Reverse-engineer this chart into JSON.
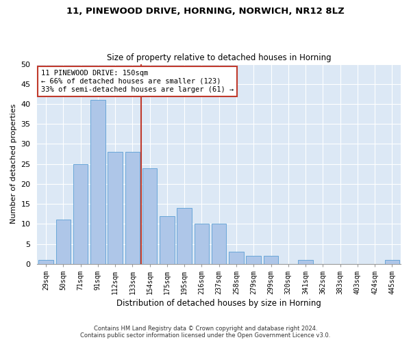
{
  "title1": "11, PINEWOOD DRIVE, HORNING, NORWICH, NR12 8LZ",
  "title2": "Size of property relative to detached houses in Horning",
  "xlabel": "Distribution of detached houses by size in Horning",
  "ylabel": "Number of detached properties",
  "categories": [
    "29sqm",
    "50sqm",
    "71sqm",
    "91sqm",
    "112sqm",
    "133sqm",
    "154sqm",
    "175sqm",
    "195sqm",
    "216sqm",
    "237sqm",
    "258sqm",
    "279sqm",
    "299sqm",
    "320sqm",
    "341sqm",
    "362sqm",
    "383sqm",
    "403sqm",
    "424sqm",
    "445sqm"
  ],
  "values": [
    1,
    11,
    25,
    41,
    28,
    28,
    24,
    12,
    14,
    10,
    10,
    3,
    2,
    2,
    0,
    1,
    0,
    0,
    0,
    0,
    1
  ],
  "bar_color": "#aec6e8",
  "bar_edge_color": "#5a9fd4",
  "vline_x": 5.5,
  "marker_label_line1": "11 PINEWOOD DRIVE: 150sqm",
  "marker_label_line2": "← 66% of detached houses are smaller (123)",
  "marker_label_line3": "33% of semi-detached houses are larger (61) →",
  "vline_color": "#c0392b",
  "annotation_box_edge_color": "#c0392b",
  "ylim": [
    0,
    50
  ],
  "yticks": [
    0,
    5,
    10,
    15,
    20,
    25,
    30,
    35,
    40,
    45,
    50
  ],
  "bg_color": "#dce8f5",
  "footnote1": "Contains HM Land Registry data © Crown copyright and database right 2024.",
  "footnote2": "Contains public sector information licensed under the Open Government Licence v3.0."
}
